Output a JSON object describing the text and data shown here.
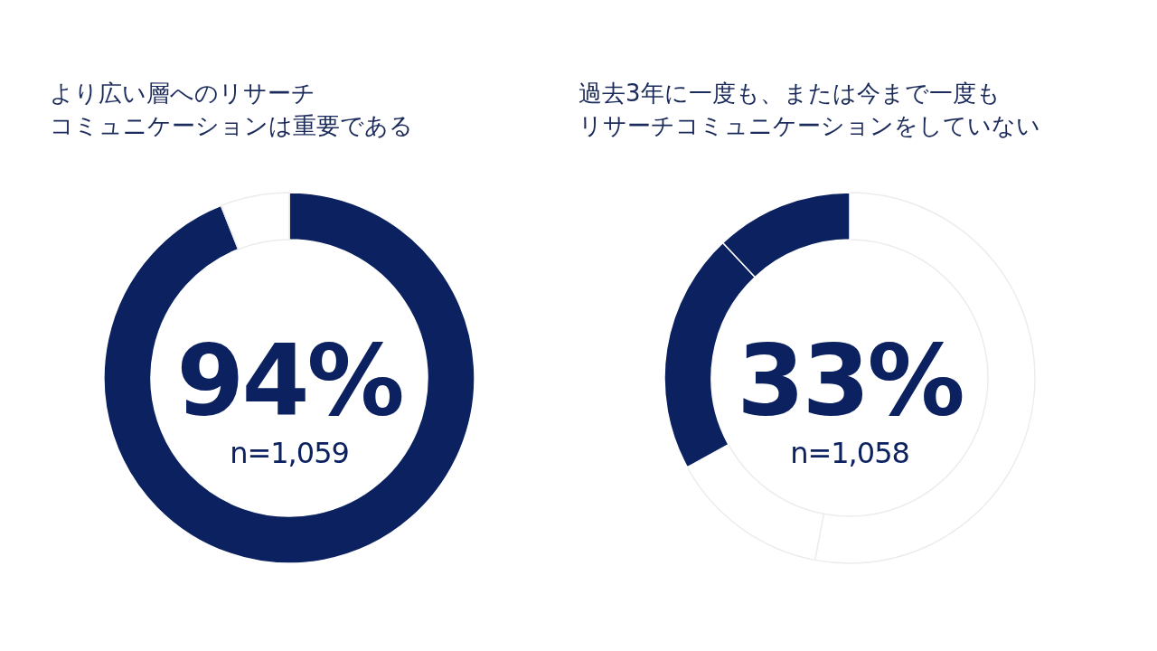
{
  "chart_data": [
    {
      "type": "donut",
      "title": "より広い層へのリサーチコミュニケーションは重要である",
      "categories": [
        null,
        null
      ],
      "values": [
        94,
        6
      ],
      "colors": [
        "#0b2160",
        "#ffffff"
      ],
      "annotations": [
        "94%",
        "n=1,059"
      ]
    },
    {
      "type": "donut",
      "title": "過去3年に一度も、または今まで一度もリサーチコミュニケーションをしていない",
      "categories": [
        null,
        null,
        null,
        null
      ],
      "values": [
        53,
        14,
        21,
        12
      ],
      "colors": [
        "#ffffff",
        "#ffffff",
        "#0b2160",
        "#0b2160"
      ],
      "annotations": [
        "33%",
        "n=1,058"
      ]
    }
  ]
}
